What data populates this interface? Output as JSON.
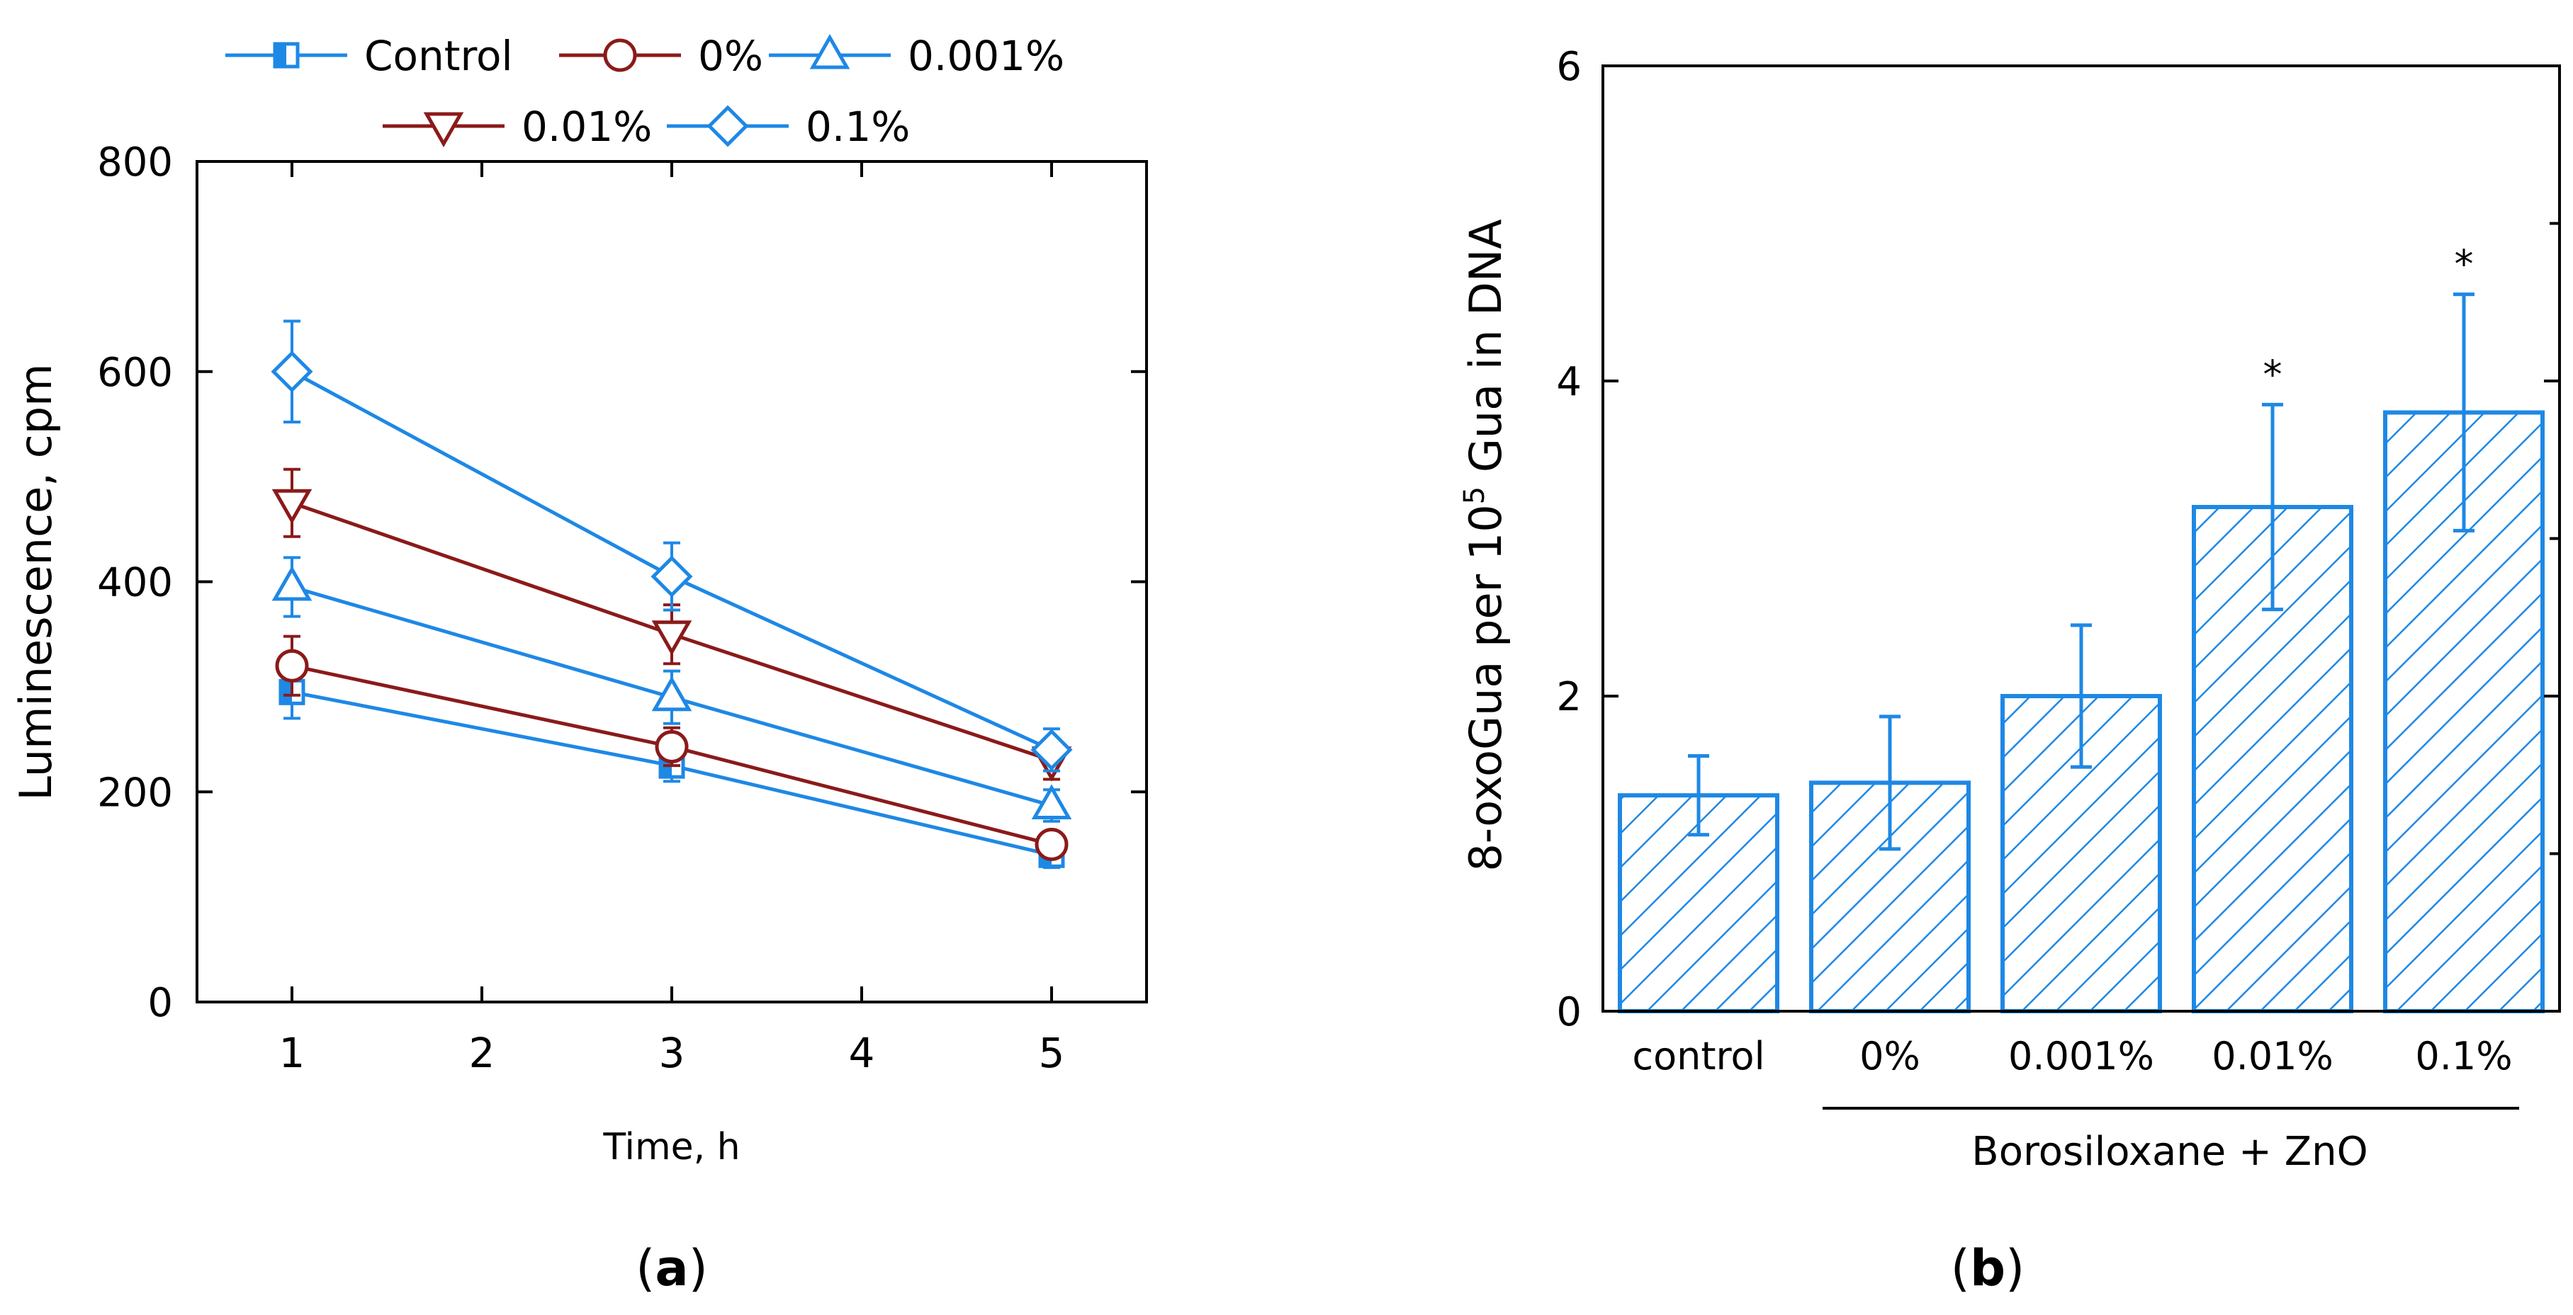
{
  "colors": {
    "blue": "#1E88E5",
    "red": "#8B1A1A",
    "axis": "#000000"
  },
  "chart_data": [
    {
      "type": "line",
      "panel_label": "a",
      "x": [
        1,
        3,
        5
      ],
      "xlabel": "Time, h",
      "ylabel": "Luminescence, cpm",
      "xlim": [
        0.5,
        5.5
      ],
      "ylim": [
        0,
        800
      ],
      "xticks": [
        1,
        2,
        3,
        4,
        5
      ],
      "yticks": [
        0,
        200,
        400,
        600,
        800
      ],
      "series": [
        {
          "name": "Control",
          "marker": "half-filled-square",
          "color": "blue",
          "values": [
            295,
            225,
            140
          ],
          "errors": [
            25,
            15,
            12
          ]
        },
        {
          "name": "0%",
          "marker": "circle",
          "color": "red",
          "values": [
            320,
            243,
            150
          ],
          "errors": [
            28,
            18,
            12
          ]
        },
        {
          "name": "0.001%",
          "marker": "triangle-up",
          "color": "blue",
          "values": [
            395,
            290,
            187
          ],
          "errors": [
            28,
            25,
            15
          ]
        },
        {
          "name": "0.01%",
          "marker": "triangle-down",
          "color": "red",
          "values": [
            475,
            350,
            230
          ],
          "errors": [
            32,
            28,
            18
          ]
        },
        {
          "name": "0.1%",
          "marker": "diamond",
          "color": "blue",
          "values": [
            600,
            405,
            240
          ],
          "errors": [
            48,
            32,
            20
          ]
        }
      ],
      "legend": {
        "position": "top",
        "rows": [
          [
            "Control",
            "0%",
            "0.001%"
          ],
          [
            "0.01%",
            "0.1%"
          ]
        ]
      }
    },
    {
      "type": "bar",
      "panel_label": "b",
      "categories": [
        "control",
        "0%",
        "0.001%",
        "0.01%",
        "0.1%"
      ],
      "values": [
        1.37,
        1.45,
        2.0,
        3.2,
        3.8
      ],
      "errors": [
        0.25,
        0.42,
        0.45,
        0.65,
        0.75
      ],
      "significance": [
        "",
        "",
        "",
        "*",
        "*"
      ],
      "ylabel_main": "8-oxoGua per 10",
      "ylabel_sup": "5",
      "ylabel_tail": " Gua in DNA",
      "group_label": "Borosiloxane + ZnO",
      "group_categories": [
        "0%",
        "0.001%",
        "0.01%",
        "0.1%"
      ],
      "ylim": [
        0,
        6
      ],
      "yticks": [
        0,
        2,
        4,
        6
      ],
      "hatch": "diagonal",
      "color": "blue"
    }
  ]
}
